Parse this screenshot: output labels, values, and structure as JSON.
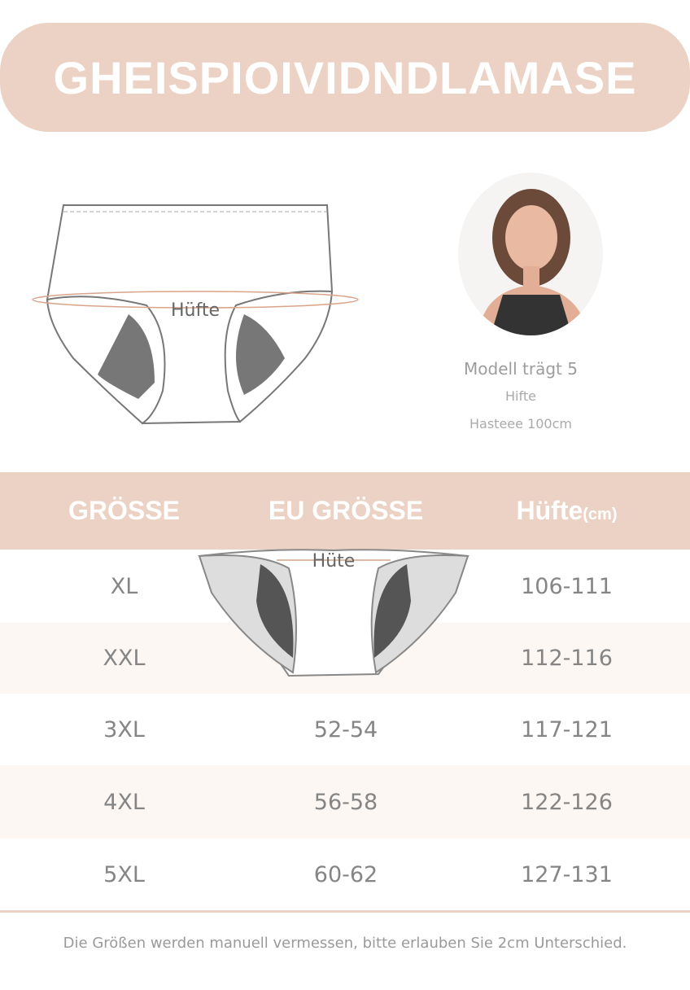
{
  "title": "GHEISPIOIVIDNDLAMASE",
  "diagram": {
    "label": "Hüfte"
  },
  "model": {
    "line1": "Modell trägt 5",
    "line2": "Hifte",
    "line3": "Hasteee 100cm"
  },
  "table": {
    "headers": {
      "size": "GRÖSSE",
      "eu": "EU GRÖSSE",
      "hip": "Hüfte",
      "hip_unit": "(cm)"
    },
    "overlay_label": "Hüte",
    "rows": [
      {
        "size": "XL",
        "eu": "",
        "hip": "106-111"
      },
      {
        "size": "XXL",
        "eu": "",
        "hip": "112-116"
      },
      {
        "size": "3XL",
        "eu": "52-54",
        "hip": "117-121"
      },
      {
        "size": "4XL",
        "eu": "56-58",
        "hip": "122-126"
      },
      {
        "size": "5XL",
        "eu": "60-62",
        "hip": "127-131"
      }
    ]
  },
  "footer": "Die Größen werden manuell vermessen, bitte erlauben Sie 2cm Unterschied.",
  "colors": {
    "accent": "#ecd2c4",
    "text": "#858585"
  }
}
